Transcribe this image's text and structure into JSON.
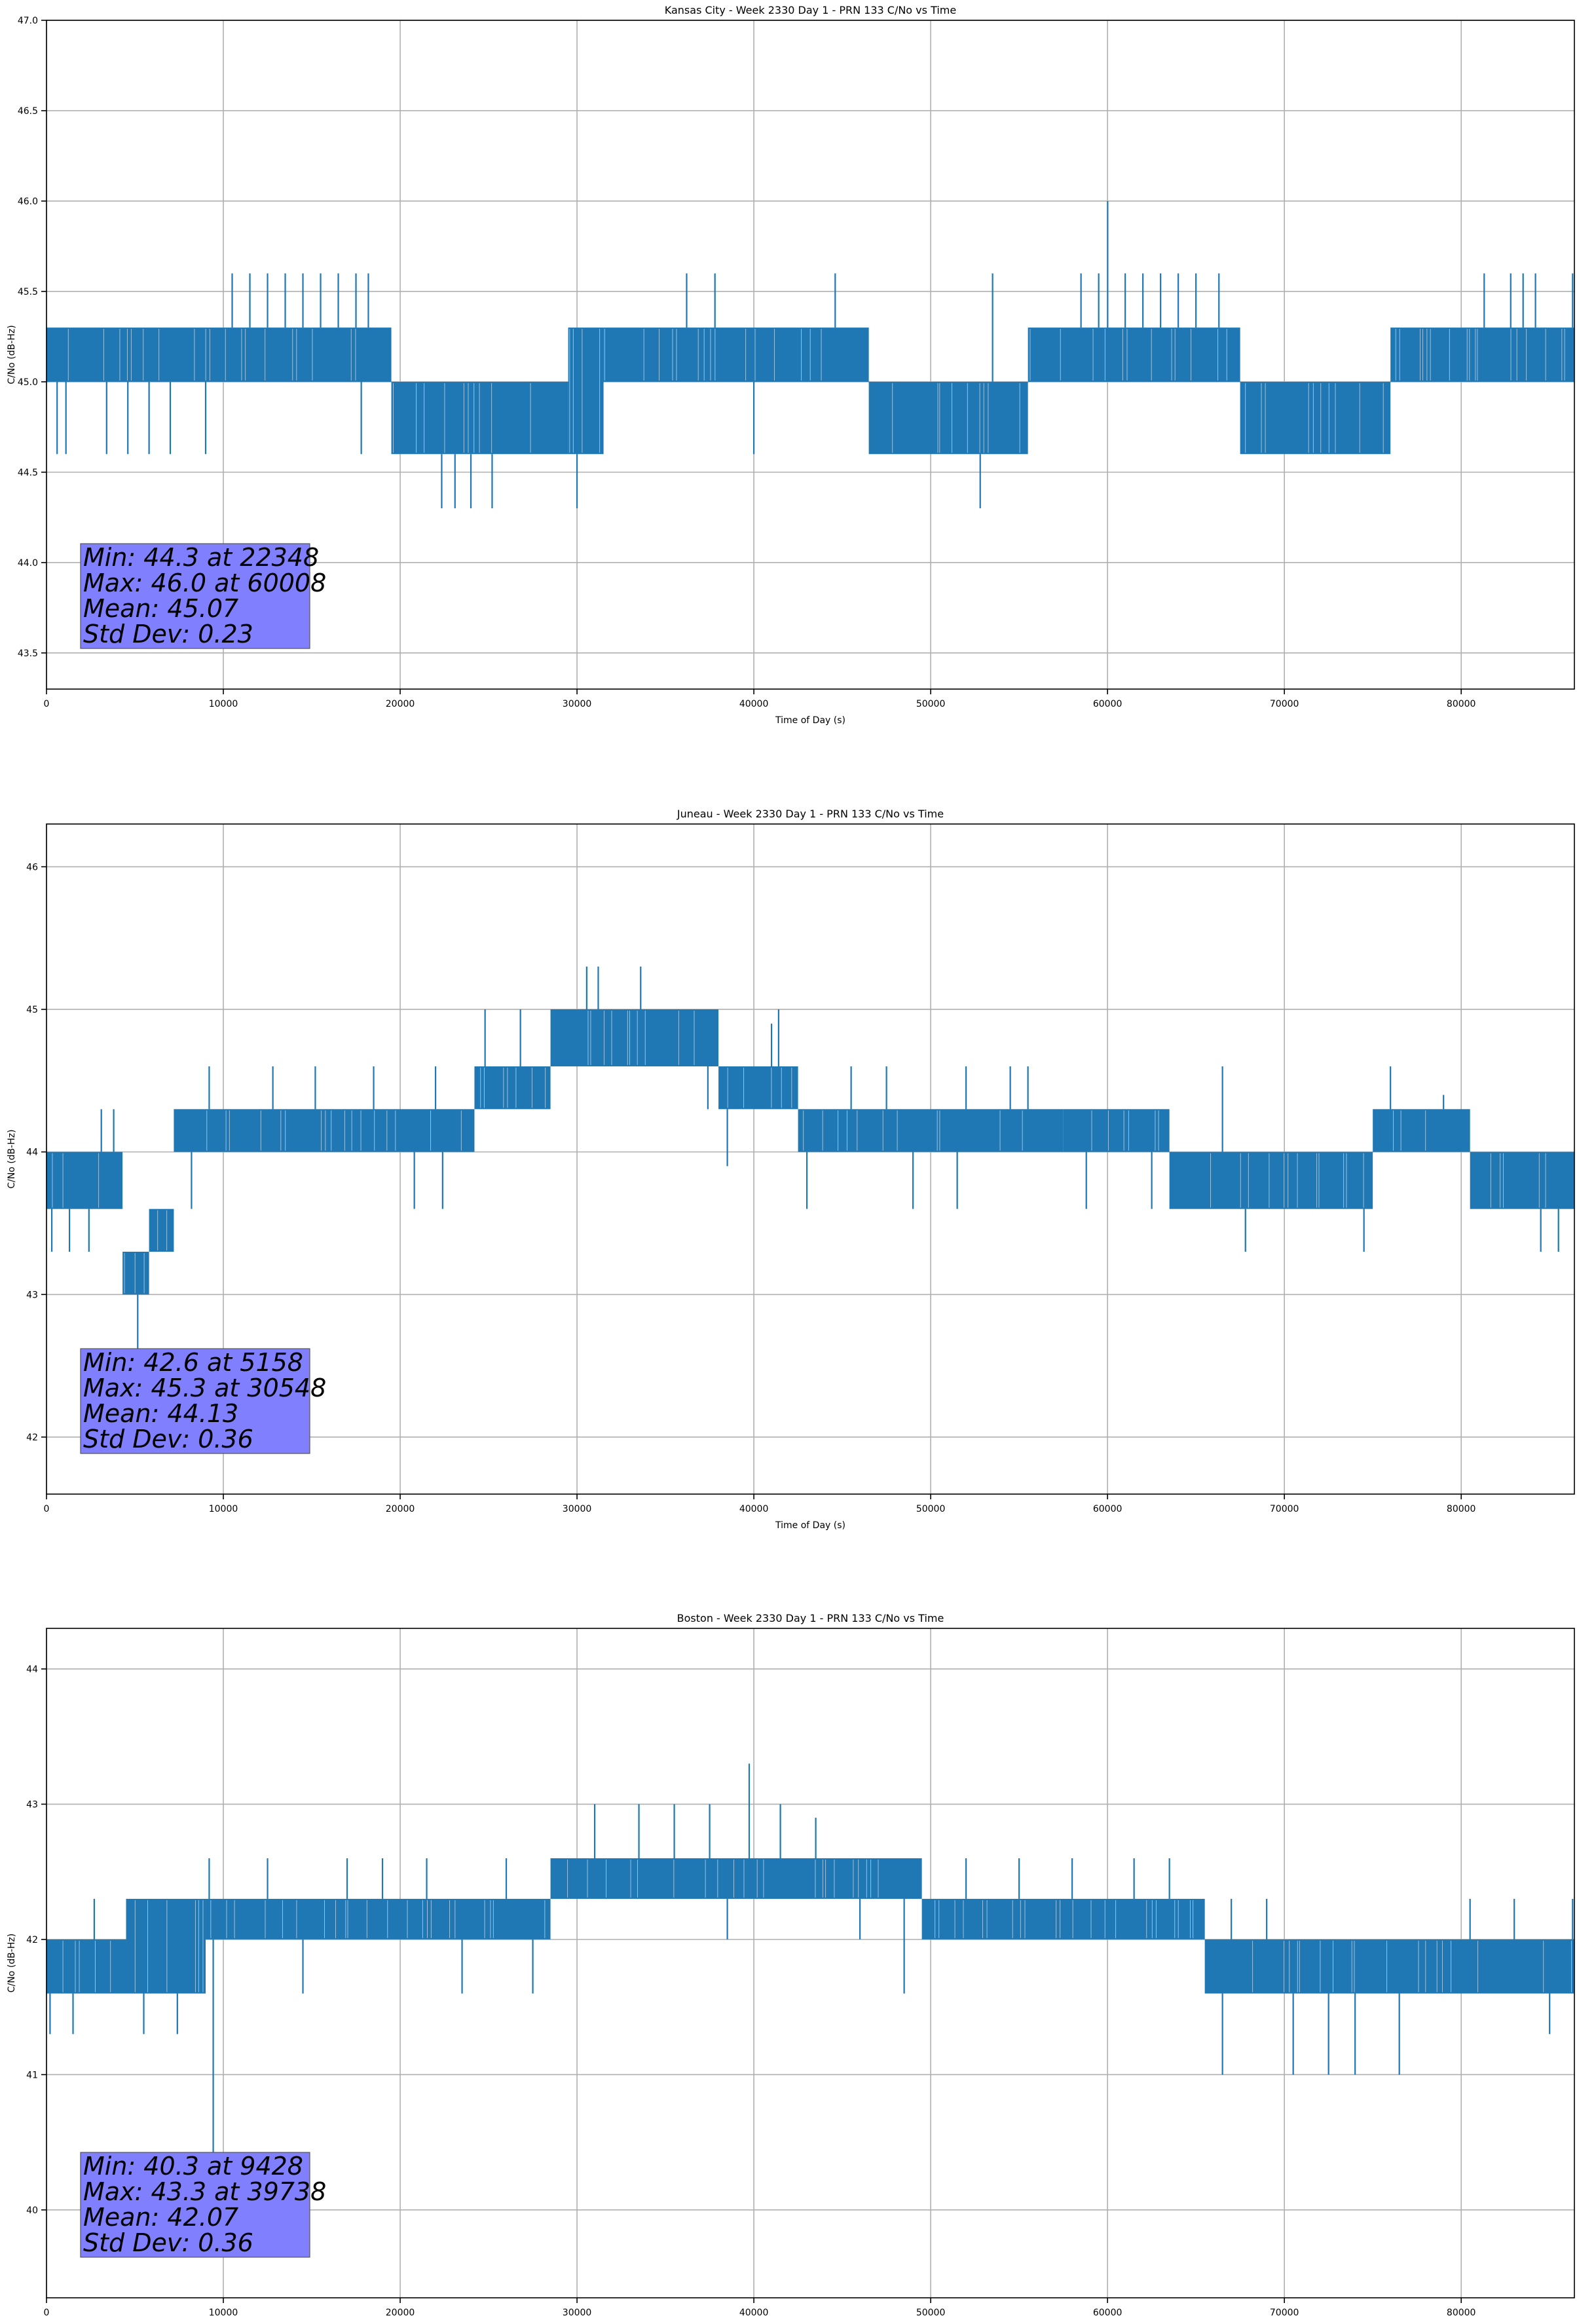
{
  "chart_data": [
    {
      "type": "line",
      "title": "Kansas City - Week 2330 Day 1 - PRN 133 C/No vs Time",
      "xlabel": "Time of Day (s)",
      "ylabel": "C/No (dB-Hz)",
      "xlim": [
        0,
        86400
      ],
      "ylim": [
        43.3,
        47.0
      ],
      "xticks": [
        0,
        10000,
        20000,
        30000,
        40000,
        50000,
        60000,
        70000,
        80000
      ],
      "xtick_labels": [
        "0",
        "10000",
        "20000",
        "30000",
        "40000",
        "50000",
        "60000",
        "70000",
        "80000"
      ],
      "yticks": [
        43.5,
        44.0,
        44.5,
        45.0,
        45.5,
        46.0,
        46.5,
        47.0
      ],
      "ytick_labels": [
        "43.5",
        "44.0",
        "44.5",
        "45.0",
        "45.5",
        "46.0",
        "46.5",
        "47.0"
      ],
      "grid": true,
      "series_color": "#1f77b4",
      "band_segments": [
        {
          "x": [
            0,
            19500
          ],
          "low": 45.0,
          "high": 45.3
        },
        {
          "x": [
            19500,
            29500
          ],
          "low": 44.6,
          "high": 45.0
        },
        {
          "x": [
            29500,
            31500
          ],
          "low": 44.6,
          "high": 45.3
        },
        {
          "x": [
            31500,
            46500
          ],
          "low": 45.0,
          "high": 45.3
        },
        {
          "x": [
            46500,
            55500
          ],
          "low": 44.6,
          "high": 45.0
        },
        {
          "x": [
            55500,
            67500
          ],
          "low": 45.0,
          "high": 45.3
        },
        {
          "x": [
            67500,
            76000
          ],
          "low": 44.6,
          "high": 45.0
        },
        {
          "x": [
            76000,
            86400
          ],
          "low": 45.0,
          "high": 45.3
        }
      ],
      "spikes": [
        {
          "x": 600,
          "y": 44.6
        },
        {
          "x": 1100,
          "y": 44.6
        },
        {
          "x": 3400,
          "y": 44.6
        },
        {
          "x": 4600,
          "y": 44.6
        },
        {
          "x": 5800,
          "y": 44.6
        },
        {
          "x": 7000,
          "y": 44.6
        },
        {
          "x": 9000,
          "y": 44.6
        },
        {
          "x": 10500,
          "y": 45.6
        },
        {
          "x": 11500,
          "y": 45.6
        },
        {
          "x": 12500,
          "y": 45.6
        },
        {
          "x": 13500,
          "y": 45.6
        },
        {
          "x": 14500,
          "y": 45.6
        },
        {
          "x": 15500,
          "y": 45.6
        },
        {
          "x": 16500,
          "y": 45.6
        },
        {
          "x": 17500,
          "y": 45.6
        },
        {
          "x": 18200,
          "y": 45.6
        },
        {
          "x": 17800,
          "y": 44.6
        },
        {
          "x": 22348,
          "y": 44.3
        },
        {
          "x": 23100,
          "y": 44.3
        },
        {
          "x": 24000,
          "y": 44.3
        },
        {
          "x": 25200,
          "y": 44.3
        },
        {
          "x": 30000,
          "y": 44.3
        },
        {
          "x": 36200,
          "y": 45.6
        },
        {
          "x": 37800,
          "y": 45.6
        },
        {
          "x": 40000,
          "y": 44.6
        },
        {
          "x": 44600,
          "y": 45.6
        },
        {
          "x": 52800,
          "y": 44.3
        },
        {
          "x": 53500,
          "y": 45.6
        },
        {
          "x": 58500,
          "y": 45.6
        },
        {
          "x": 59500,
          "y": 45.6
        },
        {
          "x": 60008,
          "y": 46.0
        },
        {
          "x": 61000,
          "y": 45.6
        },
        {
          "x": 62000,
          "y": 45.6
        },
        {
          "x": 63000,
          "y": 45.6
        },
        {
          "x": 64000,
          "y": 45.6
        },
        {
          "x": 65000,
          "y": 45.6
        },
        {
          "x": 66300,
          "y": 45.6
        },
        {
          "x": 81300,
          "y": 45.6
        },
        {
          "x": 82800,
          "y": 45.6
        },
        {
          "x": 83500,
          "y": 45.6
        },
        {
          "x": 84200,
          "y": 45.6
        },
        {
          "x": 86300,
          "y": 45.6
        }
      ],
      "stats_box": {
        "lines": [
          "Min: 44.3 at 22348",
          "Max: 46.0 at 60008",
          "Mean: 45.07",
          "Std Dev: 0.23"
        ],
        "color": "#8080ff"
      }
    },
    {
      "type": "line",
      "title": "Juneau - Week 2330 Day 1 - PRN 133 C/No vs Time",
      "xlabel": "Time of Day (s)",
      "ylabel": "C/No (dB-Hz)",
      "xlim": [
        0,
        86400
      ],
      "ylim": [
        41.6,
        46.3
      ],
      "xticks": [
        0,
        10000,
        20000,
        30000,
        40000,
        50000,
        60000,
        70000,
        80000
      ],
      "xtick_labels": [
        "0",
        "10000",
        "20000",
        "30000",
        "40000",
        "50000",
        "60000",
        "70000",
        "80000"
      ],
      "yticks": [
        42,
        43,
        44,
        45,
        46
      ],
      "ytick_labels": [
        "42",
        "43",
        "44",
        "45",
        "46"
      ],
      "grid": true,
      "series_color": "#1f77b4",
      "band_segments": [
        {
          "x": [
            0,
            4300
          ],
          "low": 43.6,
          "high": 44.0
        },
        {
          "x": [
            4300,
            5800
          ],
          "low": 43.0,
          "high": 43.3
        },
        {
          "x": [
            5800,
            7200
          ],
          "low": 43.3,
          "high": 43.6
        },
        {
          "x": [
            7200,
            24200
          ],
          "low": 44.0,
          "high": 44.3
        },
        {
          "x": [
            24200,
            28500
          ],
          "low": 44.3,
          "high": 44.6
        },
        {
          "x": [
            28500,
            38000
          ],
          "low": 44.6,
          "high": 45.0
        },
        {
          "x": [
            38000,
            42500
          ],
          "low": 44.3,
          "high": 44.6
        },
        {
          "x": [
            42500,
            57500
          ],
          "low": 44.0,
          "high": 44.3
        },
        {
          "x": [
            57500,
            63500
          ],
          "low": 44.0,
          "high": 44.3
        },
        {
          "x": [
            63500,
            75000
          ],
          "low": 43.6,
          "high": 44.0
        },
        {
          "x": [
            75000,
            80500
          ],
          "low": 44.0,
          "high": 44.3
        },
        {
          "x": [
            80500,
            86400
          ],
          "low": 43.6,
          "high": 44.0
        }
      ],
      "spikes": [
        {
          "x": 300,
          "y": 43.3
        },
        {
          "x": 1300,
          "y": 43.3
        },
        {
          "x": 2400,
          "y": 43.3
        },
        {
          "x": 3100,
          "y": 44.3
        },
        {
          "x": 3800,
          "y": 44.3
        },
        {
          "x": 5158,
          "y": 42.6
        },
        {
          "x": 8200,
          "y": 43.6
        },
        {
          "x": 9200,
          "y": 44.6
        },
        {
          "x": 12800,
          "y": 44.6
        },
        {
          "x": 15200,
          "y": 44.6
        },
        {
          "x": 18500,
          "y": 44.6
        },
        {
          "x": 20800,
          "y": 43.6
        },
        {
          "x": 22000,
          "y": 44.6
        },
        {
          "x": 22400,
          "y": 43.6
        },
        {
          "x": 24800,
          "y": 45.0
        },
        {
          "x": 26800,
          "y": 45.0
        },
        {
          "x": 30548,
          "y": 45.3
        },
        {
          "x": 31200,
          "y": 45.3
        },
        {
          "x": 33600,
          "y": 45.3
        },
        {
          "x": 37400,
          "y": 44.3
        },
        {
          "x": 38500,
          "y": 43.9
        },
        {
          "x": 41000,
          "y": 44.9
        },
        {
          "x": 41400,
          "y": 45.0
        },
        {
          "x": 43000,
          "y": 43.6
        },
        {
          "x": 45500,
          "y": 44.6
        },
        {
          "x": 47500,
          "y": 44.6
        },
        {
          "x": 52000,
          "y": 44.6
        },
        {
          "x": 54500,
          "y": 44.6
        },
        {
          "x": 55500,
          "y": 44.6
        },
        {
          "x": 49000,
          "y": 43.6
        },
        {
          "x": 51500,
          "y": 43.6
        },
        {
          "x": 58800,
          "y": 43.6
        },
        {
          "x": 62500,
          "y": 43.6
        },
        {
          "x": 66500,
          "y": 44.6
        },
        {
          "x": 67800,
          "y": 43.3
        },
        {
          "x": 71000,
          "y": 43.6
        },
        {
          "x": 74500,
          "y": 43.3
        },
        {
          "x": 76000,
          "y": 44.6
        },
        {
          "x": 79000,
          "y": 44.4
        },
        {
          "x": 84500,
          "y": 43.3
        },
        {
          "x": 85500,
          "y": 43.3
        }
      ],
      "stats_box": {
        "lines": [
          "Min: 42.6 at 5158",
          "Max: 45.3 at 30548",
          "Mean: 44.13",
          "Std Dev: 0.36"
        ],
        "color": "#8080ff"
      }
    },
    {
      "type": "line",
      "title": "Boston - Week 2330 Day 1 - PRN 133 C/No vs Time",
      "xlabel": "Time of Day (s)",
      "ylabel": "C/No (dB-Hz)",
      "xlim": [
        0,
        86400
      ],
      "ylim": [
        39.35,
        44.3
      ],
      "xticks": [
        0,
        10000,
        20000,
        30000,
        40000,
        50000,
        60000,
        70000,
        80000
      ],
      "xtick_labels": [
        "0",
        "10000",
        "20000",
        "30000",
        "40000",
        "50000",
        "60000",
        "70000",
        "80000"
      ],
      "yticks": [
        40,
        41,
        42,
        43,
        44
      ],
      "ytick_labels": [
        "40",
        "41",
        "42",
        "43",
        "44"
      ],
      "grid": true,
      "series_color": "#1f77b4",
      "band_segments": [
        {
          "x": [
            0,
            4500
          ],
          "low": 41.6,
          "high": 42.0
        },
        {
          "x": [
            4500,
            9000
          ],
          "low": 41.6,
          "high": 42.3
        },
        {
          "x": [
            9000,
            28500
          ],
          "low": 42.0,
          "high": 42.3
        },
        {
          "x": [
            28500,
            49500
          ],
          "low": 42.3,
          "high": 42.6
        },
        {
          "x": [
            49500,
            65500
          ],
          "low": 42.0,
          "high": 42.3
        },
        {
          "x": [
            65500,
            86400
          ],
          "low": 41.6,
          "high": 42.0
        }
      ],
      "spikes": [
        {
          "x": 200,
          "y": 41.3
        },
        {
          "x": 1500,
          "y": 41.3
        },
        {
          "x": 2700,
          "y": 42.3
        },
        {
          "x": 5500,
          "y": 41.3
        },
        {
          "x": 7400,
          "y": 41.3
        },
        {
          "x": 9428,
          "y": 40.3
        },
        {
          "x": 9200,
          "y": 42.6
        },
        {
          "x": 12500,
          "y": 42.6
        },
        {
          "x": 14500,
          "y": 41.6
        },
        {
          "x": 17000,
          "y": 42.6
        },
        {
          "x": 19000,
          "y": 42.6
        },
        {
          "x": 21500,
          "y": 42.6
        },
        {
          "x": 23500,
          "y": 41.6
        },
        {
          "x": 26000,
          "y": 42.6
        },
        {
          "x": 27500,
          "y": 41.6
        },
        {
          "x": 31000,
          "y": 43.0
        },
        {
          "x": 33500,
          "y": 43.0
        },
        {
          "x": 35500,
          "y": 43.0
        },
        {
          "x": 37500,
          "y": 43.0
        },
        {
          "x": 39738,
          "y": 43.3
        },
        {
          "x": 41500,
          "y": 43.0
        },
        {
          "x": 43500,
          "y": 42.9
        },
        {
          "x": 38500,
          "y": 42.0
        },
        {
          "x": 46000,
          "y": 42.0
        },
        {
          "x": 48500,
          "y": 41.6
        },
        {
          "x": 52000,
          "y": 42.6
        },
        {
          "x": 55000,
          "y": 42.6
        },
        {
          "x": 58000,
          "y": 42.6
        },
        {
          "x": 61500,
          "y": 42.6
        },
        {
          "x": 63500,
          "y": 42.6
        },
        {
          "x": 66500,
          "y": 41.0
        },
        {
          "x": 67000,
          "y": 42.3
        },
        {
          "x": 70500,
          "y": 41.0
        },
        {
          "x": 72500,
          "y": 41.0
        },
        {
          "x": 74000,
          "y": 41.0
        },
        {
          "x": 76500,
          "y": 41.0
        },
        {
          "x": 69000,
          "y": 42.3
        },
        {
          "x": 80500,
          "y": 42.3
        },
        {
          "x": 83000,
          "y": 42.3
        },
        {
          "x": 85000,
          "y": 41.3
        },
        {
          "x": 86300,
          "y": 42.3
        }
      ],
      "stats_box": {
        "lines": [
          "Min: 40.3 at 9428",
          "Max: 43.3 at 39738",
          "Mean: 42.07",
          "Std Dev: 0.36"
        ],
        "color": "#8080ff"
      }
    }
  ]
}
